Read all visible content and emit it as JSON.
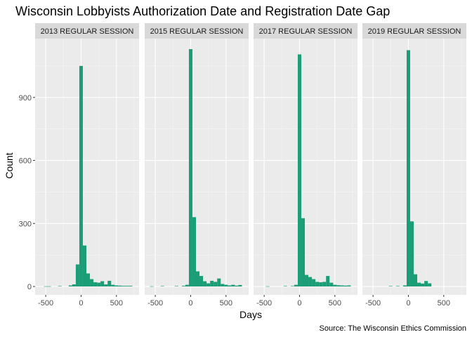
{
  "chart_data": {
    "type": "bar",
    "title": "Wisconsin Lobbyists Authorization Date and Registration Date Gap",
    "xlabel": "Days",
    "ylabel": "Count",
    "caption": "Source: The Wisconsin Ethics Commission",
    "bar_color": "#1b9e77",
    "background_color": "#ebebeb",
    "strip_color": "#d9d9d9",
    "xlim": [
      -650,
      820
    ],
    "ylim": [
      -40,
      1180
    ],
    "x_ticks": [
      -500,
      0,
      500
    ],
    "x_tick_labels": [
      "-500",
      "0",
      "500"
    ],
    "y_ticks": [
      0,
      300,
      600,
      900
    ],
    "y_tick_labels": [
      "0",
      "300",
      "600",
      "900"
    ],
    "bin_width": 50,
    "facets": [
      {
        "label": "2013 REGULAR SESSION",
        "bins": [
          {
            "x": -500,
            "count": 1
          },
          {
            "x": -450,
            "count": 1
          },
          {
            "x": -300,
            "count": 2
          },
          {
            "x": -150,
            "count": 5
          },
          {
            "x": -100,
            "count": 10
          },
          {
            "x": -50,
            "count": 105
          },
          {
            "x": 0,
            "count": 1050
          },
          {
            "x": 50,
            "count": 195
          },
          {
            "x": 100,
            "count": 62
          },
          {
            "x": 150,
            "count": 35
          },
          {
            "x": 200,
            "count": 20
          },
          {
            "x": 250,
            "count": 18
          },
          {
            "x": 300,
            "count": 25
          },
          {
            "x": 350,
            "count": 10
          },
          {
            "x": 400,
            "count": 27
          },
          {
            "x": 450,
            "count": 8
          },
          {
            "x": 500,
            "count": 5
          },
          {
            "x": 550,
            "count": 4
          },
          {
            "x": 600,
            "count": 3
          },
          {
            "x": 650,
            "count": 3
          },
          {
            "x": 700,
            "count": 3
          }
        ]
      },
      {
        "label": "2015 REGULAR SESSION",
        "bins": [
          {
            "x": -550,
            "count": 1
          },
          {
            "x": -400,
            "count": 2
          },
          {
            "x": -200,
            "count": 2
          },
          {
            "x": -100,
            "count": 3
          },
          {
            "x": -50,
            "count": 8
          },
          {
            "x": 0,
            "count": 1130
          },
          {
            "x": 50,
            "count": 330
          },
          {
            "x": 100,
            "count": 72
          },
          {
            "x": 150,
            "count": 50
          },
          {
            "x": 200,
            "count": 25
          },
          {
            "x": 250,
            "count": 15
          },
          {
            "x": 300,
            "count": 27
          },
          {
            "x": 350,
            "count": 22
          },
          {
            "x": 400,
            "count": 38
          },
          {
            "x": 450,
            "count": 12
          },
          {
            "x": 500,
            "count": 8
          },
          {
            "x": 550,
            "count": 5
          },
          {
            "x": 600,
            "count": 8
          },
          {
            "x": 650,
            "count": 4
          },
          {
            "x": 700,
            "count": 7
          }
        ]
      },
      {
        "label": "2017 REGULAR SESSION",
        "bins": [
          {
            "x": -450,
            "count": 1
          },
          {
            "x": -200,
            "count": 2
          },
          {
            "x": -100,
            "count": 2
          },
          {
            "x": -50,
            "count": 8
          },
          {
            "x": 0,
            "count": 1105
          },
          {
            "x": 50,
            "count": 325
          },
          {
            "x": 100,
            "count": 55
          },
          {
            "x": 150,
            "count": 45
          },
          {
            "x": 200,
            "count": 35
          },
          {
            "x": 250,
            "count": 22
          },
          {
            "x": 300,
            "count": 20
          },
          {
            "x": 350,
            "count": 22
          },
          {
            "x": 400,
            "count": 50
          },
          {
            "x": 450,
            "count": 18
          },
          {
            "x": 500,
            "count": 8
          },
          {
            "x": 550,
            "count": 6
          },
          {
            "x": 600,
            "count": 5
          },
          {
            "x": 650,
            "count": 4
          },
          {
            "x": 700,
            "count": 5
          }
        ]
      },
      {
        "label": "2019 REGULAR SESSION",
        "bins": [
          {
            "x": -250,
            "count": 2
          },
          {
            "x": -150,
            "count": 2
          },
          {
            "x": -50,
            "count": 5
          },
          {
            "x": 0,
            "count": 1125
          },
          {
            "x": 50,
            "count": 310
          },
          {
            "x": 100,
            "count": 58
          },
          {
            "x": 150,
            "count": 18
          },
          {
            "x": 200,
            "count": 14
          },
          {
            "x": 250,
            "count": 26
          },
          {
            "x": 300,
            "count": 15
          }
        ]
      }
    ]
  }
}
